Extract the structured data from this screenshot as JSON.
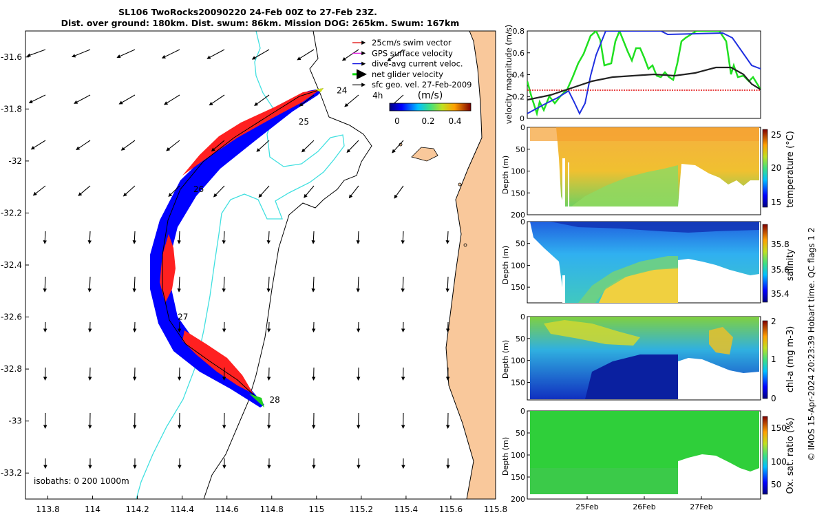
{
  "title_line1": "SL106 TwoRocks20090220 24-Feb 00Z to 27-Feb 23Z.",
  "title_line2": "Dist. over ground: 180km. Dist. swum: 86km. Mission DOG: 265km. Swum: 167km",
  "side_credit": "© IMOS 15-Apr-2024 20:23:39 Hobart time. QC flags 1  2",
  "isobath_label": "isobaths: 0   200  1000m",
  "legend": [
    {
      "label": "25cm/s swim vector",
      "color": "#e00000"
    },
    {
      "label": "GPS surface velocity",
      "color": "#e000e0"
    },
    {
      "label": "dive-avg current veloc.",
      "color": "#0000e0"
    },
    {
      "label": "net glider velocity",
      "color": "#00dd00"
    },
    {
      "label": "sfc geo. vel. 27-Feb-2009",
      "color": "#000000"
    }
  ],
  "colors": {
    "land": "#f9c89b",
    "coast": "#000000",
    "isobath": "#40e0e0",
    "track_blue": "#0000ff",
    "track_red": "#ff0000"
  },
  "chart_data": [
    {
      "type": "map",
      "xticks": [
        "113.8",
        "114",
        "114.2",
        "114.4",
        "114.6",
        "114.8",
        "115",
        "115.2",
        "115.4",
        "115.6",
        "115.8"
      ],
      "yticks": [
        "-31.6",
        "-31.8",
        "-32",
        "-32.2",
        "-32.4",
        "-32.6",
        "-32.8",
        "-33",
        "-33.2"
      ],
      "xlim": [
        113.7,
        115.8
      ],
      "ylim": [
        -33.3,
        -31.5
      ],
      "day_labels": [
        {
          "text": "24",
          "lon": 115.09,
          "lat": -31.74
        },
        {
          "text": "4h",
          "lon": 115.25,
          "lat": -31.76
        },
        {
          "text": "25",
          "lon": 114.92,
          "lat": -31.86
        },
        {
          "text": "26",
          "lon": 114.45,
          "lat": -32.12
        },
        {
          "text": "27",
          "lon": 114.38,
          "lat": -32.61
        },
        {
          "text": "28",
          "lon": 114.79,
          "lat": -32.93
        }
      ],
      "colorbar": {
        "label": "(m/s)",
        "ticks": [
          "0",
          "0.2",
          "0.4"
        ],
        "range": [
          0,
          0.5
        ]
      }
    },
    {
      "type": "line",
      "ylabel": "velocity magnitude (m/s)",
      "yticks": [
        "0",
        "0.2",
        "0.4",
        "0.6",
        "0.8"
      ],
      "ylim": [
        0,
        0.8
      ]
    },
    {
      "type": "heatmap",
      "ylabel": "Depth (m)",
      "cblabel": "temperature (°C)",
      "cbticks": [
        "25",
        "20",
        "15"
      ],
      "yticks": [
        "0",
        "50",
        "100",
        "150",
        "200"
      ]
    },
    {
      "type": "heatmap",
      "ylabel": "Depth (m)",
      "cblabel": "salinity",
      "cbticks": [
        "35.8",
        "35.6",
        "35.4"
      ],
      "yticks": [
        "0",
        "50",
        "100",
        "150"
      ]
    },
    {
      "type": "heatmap",
      "ylabel": "Depth (m)",
      "cblabel": "chl-a (mg m-3)",
      "cbticks": [
        "2",
        "1",
        "0"
      ],
      "yticks": [
        "0",
        "50",
        "100",
        "150"
      ]
    },
    {
      "type": "heatmap",
      "ylabel": "Depth (m)",
      "cblabel": "Ox. sat. ratio (%)",
      "cbticks": [
        "150",
        "100",
        "50"
      ],
      "yticks": [
        "0",
        "50",
        "100",
        "150",
        "200"
      ],
      "xticks": [
        "25Feb",
        "26Feb",
        "27Feb"
      ]
    }
  ]
}
